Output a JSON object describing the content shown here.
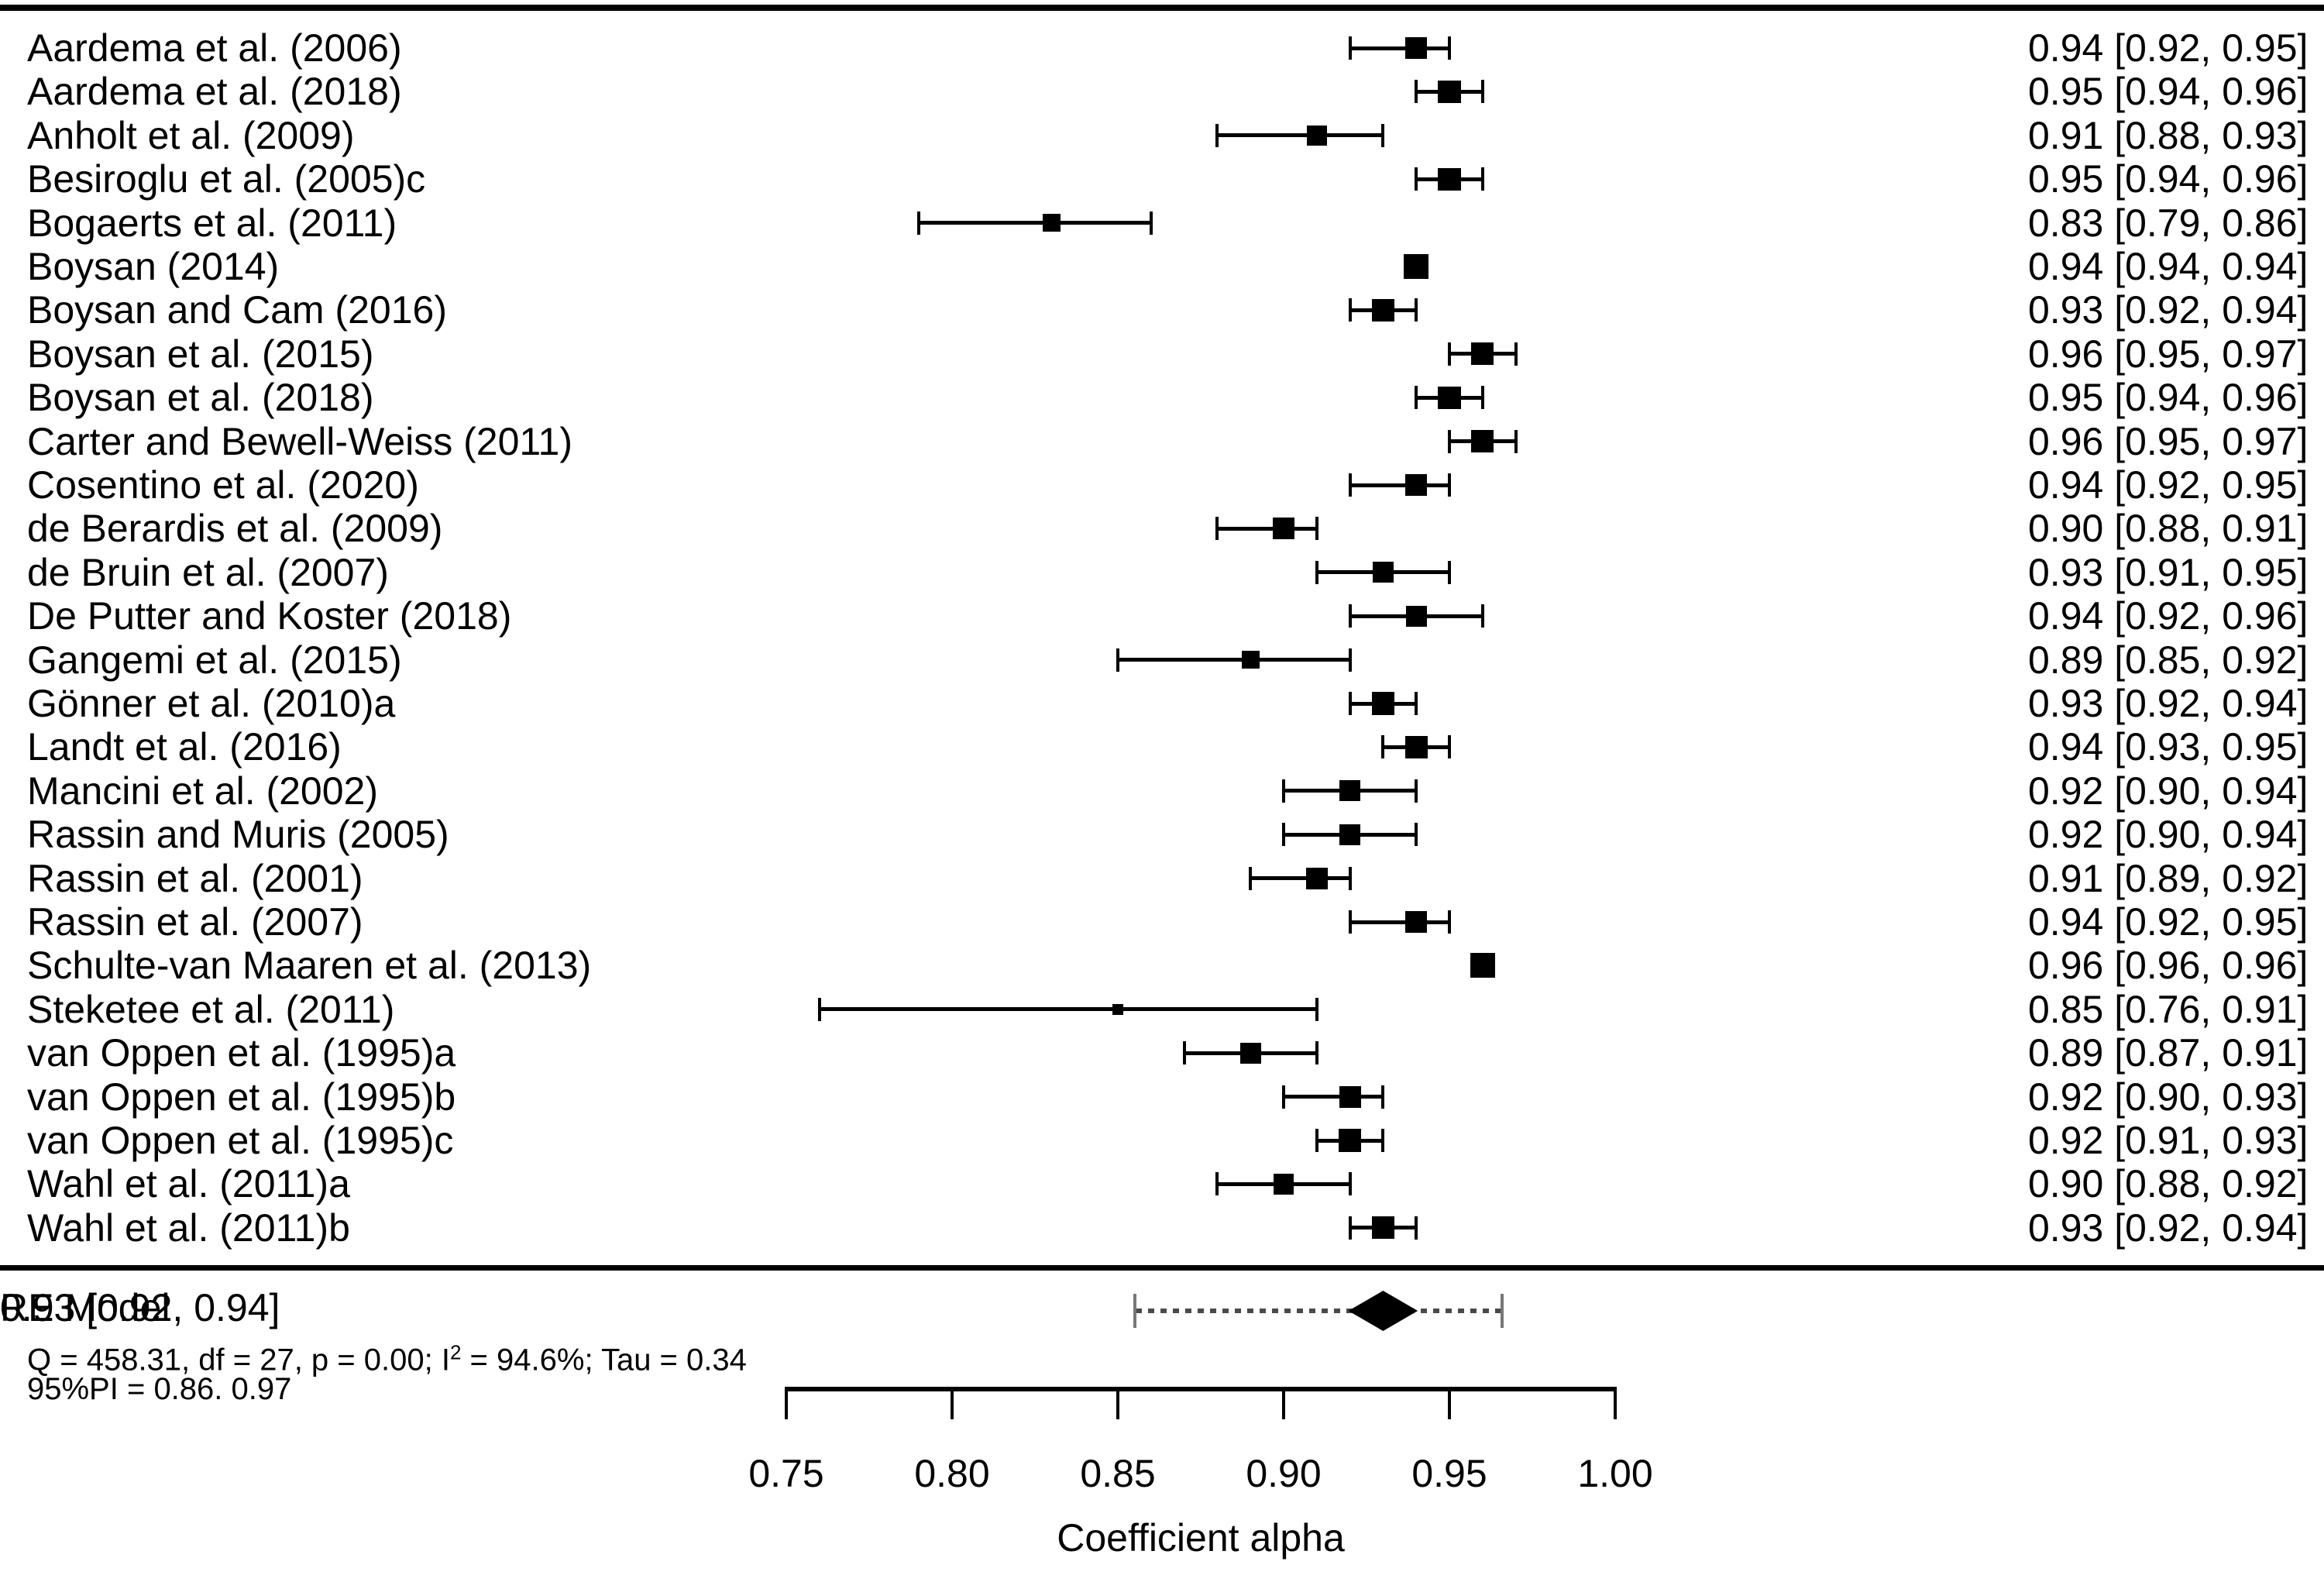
{
  "chart_data": {
    "type": "forest",
    "xlabel": "Coefficient alpha",
    "axis_range": [
      0.75,
      1.0
    ],
    "x_ticks": [
      0.75,
      0.8,
      0.85,
      0.9,
      0.95,
      1.0
    ],
    "x_tick_labels": [
      "0.75",
      "0.80",
      "0.85",
      "0.90",
      "0.95",
      "1.00"
    ],
    "grid": false,
    "studies": [
      {
        "label": "Aardema et al. (2006)",
        "est": 0.94,
        "lo": 0.92,
        "hi": 0.95,
        "display": "0.94 [0.92, 0.95]"
      },
      {
        "label": "Aardema et al. (2018)",
        "est": 0.95,
        "lo": 0.94,
        "hi": 0.96,
        "display": "0.95 [0.94, 0.96]"
      },
      {
        "label": "Anholt et al. (2009)",
        "est": 0.91,
        "lo": 0.88,
        "hi": 0.93,
        "display": "0.91 [0.88, 0.93]"
      },
      {
        "label": "Besiroglu et al. (2005)c",
        "est": 0.95,
        "lo": 0.94,
        "hi": 0.96,
        "display": "0.95 [0.94, 0.96]"
      },
      {
        "label": "Bogaerts et al. (2011)",
        "est": 0.83,
        "lo": 0.79,
        "hi": 0.86,
        "display": "0.83 [0.79, 0.86]"
      },
      {
        "label": "Boysan (2014)",
        "est": 0.94,
        "lo": 0.94,
        "hi": 0.94,
        "display": "0.94 [0.94, 0.94]"
      },
      {
        "label": "Boysan and Cam (2016)",
        "est": 0.93,
        "lo": 0.92,
        "hi": 0.94,
        "display": "0.93 [0.92, 0.94]"
      },
      {
        "label": "Boysan et al. (2015)",
        "est": 0.96,
        "lo": 0.95,
        "hi": 0.97,
        "display": "0.96 [0.95, 0.97]"
      },
      {
        "label": "Boysan et al. (2018)",
        "est": 0.95,
        "lo": 0.94,
        "hi": 0.96,
        "display": "0.95 [0.94, 0.96]"
      },
      {
        "label": "Carter and Bewell-Weiss (2011)",
        "est": 0.96,
        "lo": 0.95,
        "hi": 0.97,
        "display": "0.96 [0.95, 0.97]"
      },
      {
        "label": "Cosentino et al. (2020)",
        "est": 0.94,
        "lo": 0.92,
        "hi": 0.95,
        "display": "0.94 [0.92, 0.95]"
      },
      {
        "label": "de Berardis et al. (2009)",
        "est": 0.9,
        "lo": 0.88,
        "hi": 0.91,
        "display": "0.90 [0.88, 0.91]"
      },
      {
        "label": "de Bruin et al. (2007)",
        "est": 0.93,
        "lo": 0.91,
        "hi": 0.95,
        "display": "0.93 [0.91, 0.95]"
      },
      {
        "label": "De Putter and Koster (2018)",
        "est": 0.94,
        "lo": 0.92,
        "hi": 0.96,
        "display": "0.94 [0.92, 0.96]"
      },
      {
        "label": "Gangemi et al. (2015)",
        "est": 0.89,
        "lo": 0.85,
        "hi": 0.92,
        "display": "0.89 [0.85, 0.92]"
      },
      {
        "label": "Gönner et al. (2010)a",
        "est": 0.93,
        "lo": 0.92,
        "hi": 0.94,
        "display": "0.93 [0.92, 0.94]"
      },
      {
        "label": "Landt et al. (2016)",
        "est": 0.94,
        "lo": 0.93,
        "hi": 0.95,
        "display": "0.94 [0.93, 0.95]"
      },
      {
        "label": "Mancini et al. (2002)",
        "est": 0.92,
        "lo": 0.9,
        "hi": 0.94,
        "display": "0.92 [0.90, 0.94]"
      },
      {
        "label": "Rassin and Muris (2005)",
        "est": 0.92,
        "lo": 0.9,
        "hi": 0.94,
        "display": "0.92 [0.90, 0.94]"
      },
      {
        "label": "Rassin et al. (2001)",
        "est": 0.91,
        "lo": 0.89,
        "hi": 0.92,
        "display": "0.91 [0.89, 0.92]"
      },
      {
        "label": "Rassin et al. (2007)",
        "est": 0.94,
        "lo": 0.92,
        "hi": 0.95,
        "display": "0.94 [0.92, 0.95]"
      },
      {
        "label": "Schulte-van Maaren et al. (2013)",
        "est": 0.96,
        "lo": 0.96,
        "hi": 0.96,
        "display": "0.96 [0.96, 0.96]"
      },
      {
        "label": "Steketee et al. (2011)",
        "est": 0.85,
        "lo": 0.76,
        "hi": 0.91,
        "display": "0.85 [0.76, 0.91]"
      },
      {
        "label": "van Oppen et al. (1995)a",
        "est": 0.89,
        "lo": 0.87,
        "hi": 0.91,
        "display": "0.89 [0.87, 0.91]"
      },
      {
        "label": "van Oppen et al. (1995)b",
        "est": 0.92,
        "lo": 0.9,
        "hi": 0.93,
        "display": "0.92 [0.90, 0.93]"
      },
      {
        "label": "van Oppen et al. (1995)c",
        "est": 0.92,
        "lo": 0.91,
        "hi": 0.93,
        "display": "0.92 [0.91, 0.93]"
      },
      {
        "label": "Wahl et al. (2011)a",
        "est": 0.9,
        "lo": 0.88,
        "hi": 0.92,
        "display": "0.90 [0.88, 0.92]"
      },
      {
        "label": "Wahl et al. (2011)b",
        "est": 0.93,
        "lo": 0.92,
        "hi": 0.94,
        "display": "0.93 [0.92, 0.94]"
      }
    ],
    "summary": {
      "label": "RE Model",
      "est": 0.93,
      "lo": 0.92,
      "hi": 0.94,
      "display": "0.93 [0.92, 0.94]",
      "pi_lo": 0.86,
      "pi_hi": 0.97
    },
    "stats_line_pre": "Q = 458.31, df = 27, p = 0.00; I",
    "stats_line_sup": "2",
    "stats_line_post": " = 94.6%; Tau = 0.34",
    "pi_text": "95%PI = 0.86. 0.97",
    "colors": {
      "marker": "#000000",
      "pi_dotted": "#4a4a4a",
      "pi_cap": "#777777"
    }
  }
}
